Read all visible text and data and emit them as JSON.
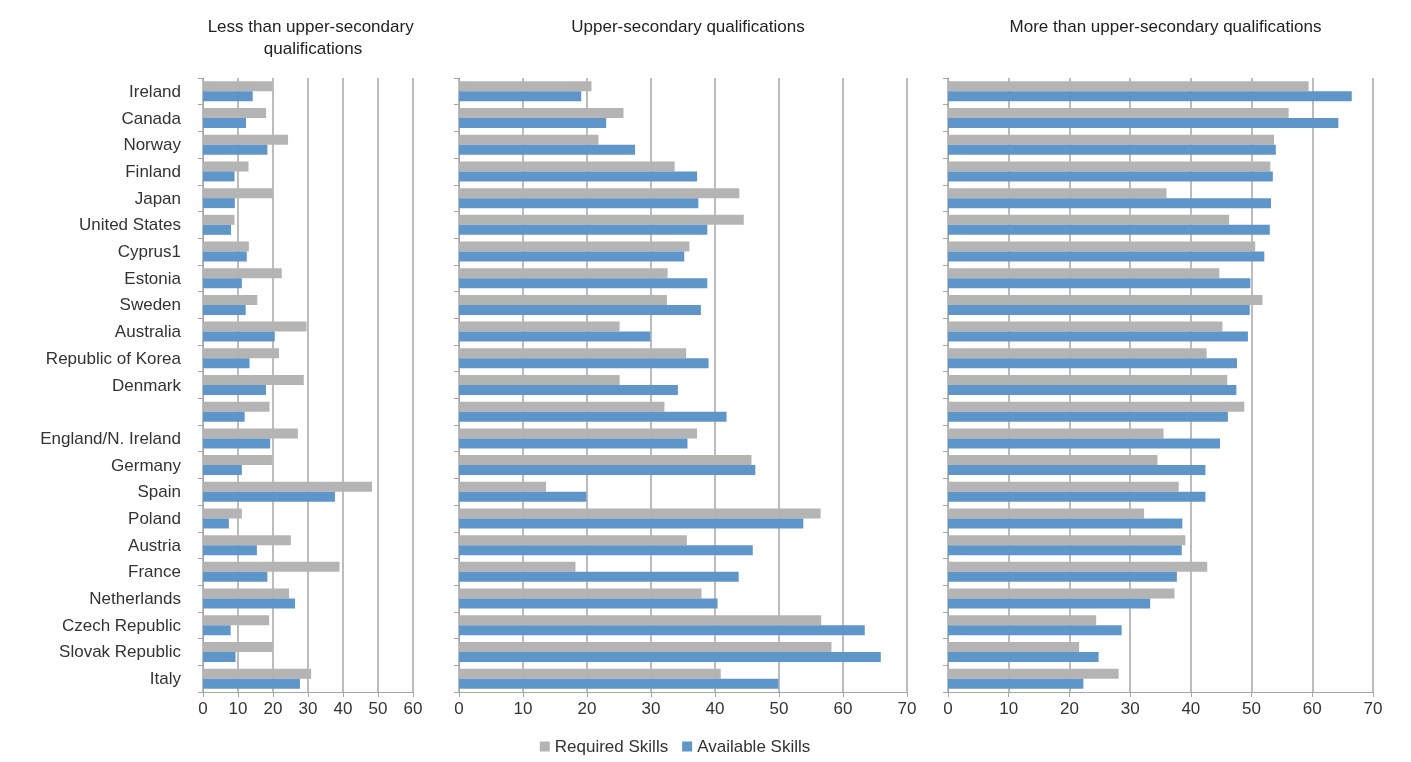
{
  "chart_data": [
    {
      "type": "bar",
      "orientation": "horizontal",
      "title": "Less than upper-secondary qualifications",
      "categories": [
        "Ireland",
        "Canada",
        "Norway",
        "Finland",
        "Japan",
        "United States",
        "Cyprus1",
        "Estonia",
        "Sweden",
        "Australia",
        "Republic of Korea",
        "Denmark",
        null,
        "England/N. Ireland",
        "Germany",
        "Spain",
        "Poland",
        "Austria",
        "France",
        "Netherlands",
        "Czech Republic",
        "Slovak Republic",
        "Italy"
      ],
      "series": [
        {
          "color": "#b4b4b4",
          "values": [
            19.8,
            18,
            24.3,
            13,
            19.9,
            9,
            13.1,
            22.5,
            15.5,
            29.6,
            21.7,
            28.8,
            19,
            27.1,
            19.7,
            48.3,
            11.1,
            25.1,
            39,
            24.6,
            18.9,
            19.9,
            30.9
          ]
        },
        {
          "color": "#5f96c9",
          "values": [
            14.2,
            12.3,
            18.4,
            9,
            9.1,
            8,
            12.5,
            11.1,
            12.2,
            20.5,
            13.3,
            18,
            11.9,
            19.2,
            11.1,
            37.7,
            7.4,
            15.4,
            18.4,
            26.3,
            7.9,
            9.3,
            27.7
          ]
        }
      ],
      "xlim": [
        0,
        60
      ],
      "xticks": [
        0,
        10,
        20,
        30,
        40,
        50,
        60
      ],
      "grid": "x"
    },
    {
      "type": "bar",
      "orientation": "horizontal",
      "title": "Upper-secondary qualifications",
      "categories": [
        "Ireland",
        "Canada",
        "Norway",
        "Finland",
        "Japan",
        "United States",
        "Cyprus1",
        "Estonia",
        "Sweden",
        "Australia",
        "Republic of Korea",
        "Denmark",
        null,
        "England/N. Ireland",
        "Germany",
        "Spain",
        "Poland",
        "Austria",
        "France",
        "Netherlands",
        "Czech Republic",
        "Slovak Republic",
        "Italy"
      ],
      "series": [
        {
          "name": "Required Skills",
          "color": "#b4b4b4",
          "values": [
            20.7,
            25.7,
            21.8,
            33.7,
            43.8,
            44.5,
            36,
            32.6,
            32.5,
            25.1,
            35.5,
            25.1,
            32.1,
            37.2,
            45.7,
            13.6,
            56.5,
            35.6,
            18.2,
            37.9,
            56.6,
            58.2,
            40.9
          ]
        },
        {
          "name": "Available Skills",
          "color": "#5f96c9",
          "values": [
            19.1,
            23,
            27.5,
            37.2,
            37.4,
            38.8,
            35.2,
            38.8,
            37.8,
            29.9,
            39,
            34.2,
            41.8,
            35.7,
            46.3,
            19.9,
            53.8,
            45.9,
            43.7,
            40.4,
            63.4,
            65.9,
            49.9
          ]
        }
      ],
      "xlim": [
        0,
        70
      ],
      "xticks": [
        0,
        10,
        20,
        30,
        40,
        50,
        60,
        70
      ],
      "grid": "x",
      "legend": "bottom",
      "tick_labels": "x"
    },
    {
      "type": "bar",
      "orientation": "horizontal",
      "title": "More than upper-secondary qualifications",
      "categories": [
        "Ireland",
        "Canada",
        "Norway",
        "Finland",
        "Japan",
        "United States",
        "Cyprus1",
        "Estonia",
        "Sweden",
        "Australia",
        "Republic of Korea",
        "Denmark",
        null,
        "England/N. Ireland",
        "Germany",
        "Spain",
        "Poland",
        "Austria",
        "France",
        "Netherlands",
        "Czech Republic",
        "Slovak Republic",
        "Italy"
      ],
      "series": [
        {
          "color": "#b4b4b4",
          "values": [
            59.4,
            56.1,
            53.7,
            53.1,
            36,
            46.3,
            50.6,
            44.7,
            51.8,
            45.2,
            42.6,
            46,
            48.8,
            35.5,
            34.5,
            38,
            32.3,
            39.1,
            42.7,
            37.3,
            24.4,
            21.6,
            28.1
          ]
        },
        {
          "color": "#5f96c9",
          "values": [
            66.5,
            64.3,
            54,
            53.5,
            53.2,
            53,
            52.1,
            49.8,
            49.7,
            49.4,
            47.6,
            47.5,
            46.1,
            44.8,
            42.4,
            42.4,
            38.6,
            38.5,
            37.7,
            33.3,
            28.6,
            24.8,
            22.3
          ]
        }
      ],
      "xlim": [
        0,
        70
      ],
      "xticks": [
        0,
        10,
        20,
        30,
        40,
        50,
        60,
        70
      ],
      "grid": "x",
      "tick_labels": "x"
    }
  ]
}
